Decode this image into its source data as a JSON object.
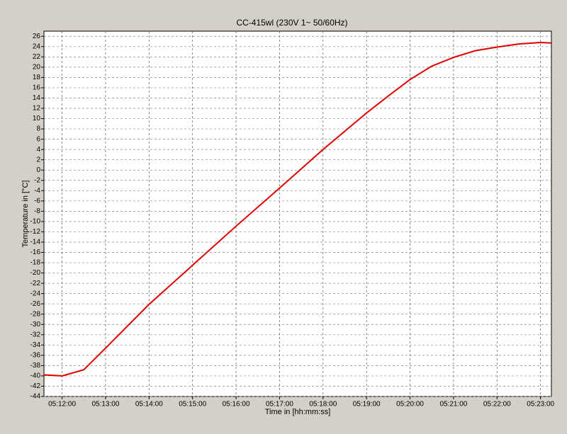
{
  "chart_data": {
    "type": "line",
    "title": "CC-415wl (230V 1~ 50/60Hz)",
    "x_label": "Time in [hh:mm:ss]",
    "y_label": "Temperature in [°C]",
    "x": [
      "05:11:35",
      "05:12:00",
      "05:12:30",
      "05:13:00",
      "05:14:00",
      "05:15:00",
      "05:16:00",
      "05:17:00",
      "05:18:00",
      "05:19:00",
      "05:19:30",
      "05:20:00",
      "05:20:30",
      "05:21:00",
      "05:21:30",
      "05:22:00",
      "05:22:30",
      "05:23:00",
      "05:23:15"
    ],
    "series": [
      {
        "name": "Temperature",
        "color": "#e00000",
        "values": [
          -39.8,
          -40.0,
          -38.8,
          -34.6,
          -26.1,
          -18.5,
          -10.9,
          -3.5,
          4.0,
          11.1,
          14.4,
          17.6,
          20.2,
          21.9,
          23.2,
          23.9,
          24.5,
          24.8,
          24.7
        ]
      }
    ],
    "xlim": [
      "05:11:35",
      "05:23:15"
    ],
    "xticks": [
      "05:12:00",
      "05:13:00",
      "05:14:00",
      "05:15:00",
      "05:16:00",
      "05:17:00",
      "05:18:00",
      "05:19:00",
      "05:20:00",
      "05:21:00",
      "05:22:00",
      "05:23:00"
    ],
    "ylim": [
      -44,
      27
    ],
    "yticks": [
      -44,
      -42,
      -40,
      -38,
      -36,
      -34,
      -32,
      -30,
      -28,
      -26,
      -24,
      -22,
      -20,
      -18,
      -16,
      -14,
      -12,
      -10,
      -8,
      -6,
      -4,
      -2,
      0,
      2,
      4,
      6,
      8,
      10,
      12,
      14,
      16,
      18,
      20,
      22,
      24,
      26
    ],
    "grid": true
  }
}
